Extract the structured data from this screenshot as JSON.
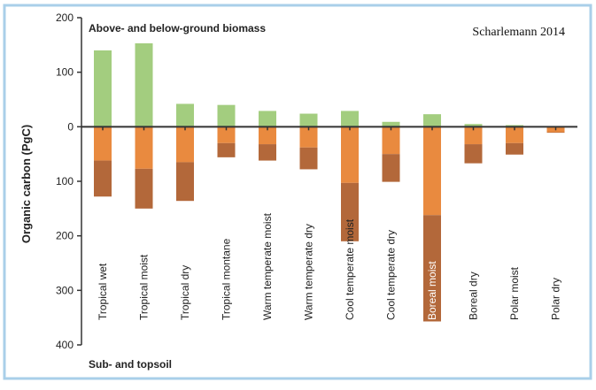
{
  "chart_data": {
    "type": "bar",
    "credit": "Scharlemann 2014",
    "ylabel": "Organic carbon (PgC)",
    "top_label": "Above- and below-ground biomass",
    "bottom_label": "Sub- and topsoil",
    "ylim": [
      -400,
      200
    ],
    "yticks": [
      {
        "value": 200,
        "label": "200"
      },
      {
        "value": 100,
        "label": "100"
      },
      {
        "value": 0,
        "label": "0"
      },
      {
        "value": -100,
        "label": "100"
      },
      {
        "value": -200,
        "label": "200"
      },
      {
        "value": -300,
        "label": "300"
      },
      {
        "value": -400,
        "label": "400"
      }
    ],
    "categories": [
      "Tropical wet",
      "Tropical moist",
      "Tropical dry",
      "Tropical montane",
      "Warm temperate moist",
      "Warm temperate dry",
      "Cool temperate moist",
      "Cool temperate dry",
      "Boreal moist",
      "Boreal dry",
      "Polar moist",
      "Polar dry"
    ],
    "series": [
      {
        "name": "Above- and below-ground biomass",
        "color": "#a3cd7f",
        "values": [
          140,
          153,
          42,
          40,
          29,
          24,
          29,
          9,
          23,
          5,
          3,
          1
        ]
      },
      {
        "name": "Topsoil",
        "color": "#e98a3f",
        "values": [
          -62,
          -77,
          -65,
          -30,
          -32,
          -38,
          -103,
          -50,
          -162,
          -32,
          -30,
          -10
        ]
      },
      {
        "name": "Subsoil",
        "color": "#b3683a",
        "values": [
          -66,
          -73,
          -71,
          -26,
          -30,
          -40,
          -107,
          -51,
          -195,
          -35,
          -21,
          -1
        ]
      }
    ],
    "highlight_category": "Boreal moist",
    "colors": {
      "frame": "#a9cfe9",
      "axis": "#333333",
      "text": "#222222",
      "highlight_label_bg": "#b3683a"
    }
  }
}
